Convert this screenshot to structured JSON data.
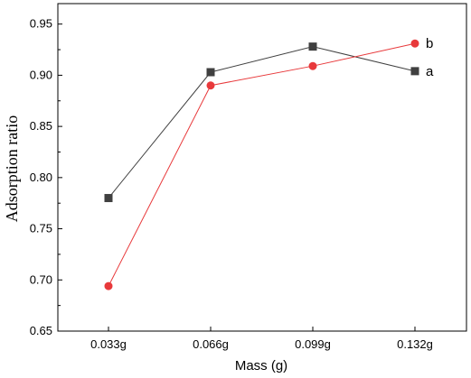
{
  "chart_data": {
    "type": "line",
    "xlabel": "Mass (g)",
    "ylabel": "Adsorption ratio",
    "categories": [
      "0.033g",
      "0.066g",
      "0.099g",
      "0.132g"
    ],
    "ylim": [
      0.65,
      0.97
    ],
    "yticks": [
      0.65,
      0.7,
      0.75,
      0.8,
      0.85,
      0.9,
      0.95
    ],
    "ytick_labels": [
      "0.65",
      "0.70",
      "0.75",
      "0.80",
      "0.85",
      "0.90",
      "0.95"
    ],
    "grid": false,
    "series": [
      {
        "name": "a",
        "values": [
          0.78,
          0.903,
          0.928,
          0.904
        ],
        "color": "#404040",
        "marker": "square"
      },
      {
        "name": "b",
        "values": [
          0.694,
          0.89,
          0.909,
          0.931
        ],
        "color": "#e8393b",
        "marker": "circle"
      }
    ]
  }
}
